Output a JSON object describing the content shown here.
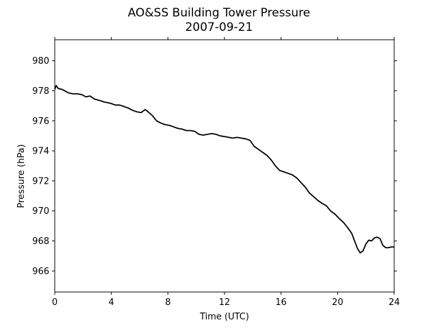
{
  "chart_data": {
    "type": "line",
    "title": "AO&SS Building Tower Pressure",
    "subtitle": "2007-09-21",
    "xlabel": "Time (UTC)",
    "ylabel": "Pressure (hPa)",
    "xlim": [
      0,
      24
    ],
    "ylim": [
      964.6,
      981.4
    ],
    "xticks": [
      0,
      4,
      8,
      12,
      16,
      20,
      24
    ],
    "yticks": [
      966,
      968,
      970,
      972,
      974,
      976,
      978,
      980
    ],
    "grid": false,
    "line_color": "#000000",
    "series": [
      {
        "x": [
          0.0,
          0.1,
          0.25,
          0.5,
          0.8,
          1.0,
          1.3,
          1.6,
          1.9,
          2.2,
          2.5,
          2.8,
          3.0,
          3.2,
          3.5,
          3.8,
          4.0,
          4.3,
          4.6,
          4.9,
          5.2,
          5.5,
          5.8,
          6.1,
          6.4,
          6.6,
          6.9,
          7.2,
          7.5,
          7.8,
          8.1,
          8.4,
          8.7,
          9.0,
          9.3,
          9.6,
          9.9,
          10.2,
          10.5,
          10.8,
          11.1,
          11.4,
          11.7,
          12.0,
          12.3,
          12.6,
          12.9,
          13.2,
          13.5,
          13.8,
          14.1,
          14.4,
          14.7,
          15.0,
          15.3,
          15.6,
          15.9,
          16.2,
          16.5,
          16.8,
          17.1,
          17.4,
          17.7,
          18.0,
          18.3,
          18.6,
          18.9,
          19.2,
          19.5,
          19.8,
          20.1,
          20.4,
          20.7,
          21.0,
          21.2,
          21.4,
          21.6,
          21.8,
          22.0,
          22.2,
          22.4,
          22.6,
          22.8,
          23.0,
          23.2,
          23.4,
          23.6,
          23.8,
          24.0
        ],
        "y": [
          978.1,
          978.35,
          978.15,
          978.1,
          977.95,
          977.85,
          977.8,
          977.8,
          977.75,
          977.6,
          977.65,
          977.45,
          977.4,
          977.35,
          977.25,
          977.2,
          977.15,
          977.05,
          977.05,
          976.95,
          976.85,
          976.7,
          976.6,
          976.55,
          976.75,
          976.6,
          976.35,
          976.0,
          975.85,
          975.75,
          975.7,
          975.6,
          975.5,
          975.45,
          975.35,
          975.35,
          975.3,
          975.1,
          975.05,
          975.1,
          975.15,
          975.1,
          975.0,
          974.95,
          974.9,
          974.85,
          974.9,
          974.85,
          974.8,
          974.7,
          974.3,
          974.1,
          973.9,
          973.7,
          973.4,
          973.0,
          972.7,
          972.6,
          972.5,
          972.4,
          972.2,
          971.9,
          971.6,
          971.2,
          970.95,
          970.7,
          970.5,
          970.35,
          970.0,
          969.8,
          969.5,
          969.25,
          968.9,
          968.5,
          968.0,
          967.5,
          967.2,
          967.35,
          967.8,
          968.05,
          968.0,
          968.2,
          968.25,
          968.15,
          967.7,
          967.55,
          967.55,
          967.6,
          967.6
        ],
        "note_x": "Time (UTC)",
        "note_y": "Pressure (hPa)"
      }
    ]
  }
}
